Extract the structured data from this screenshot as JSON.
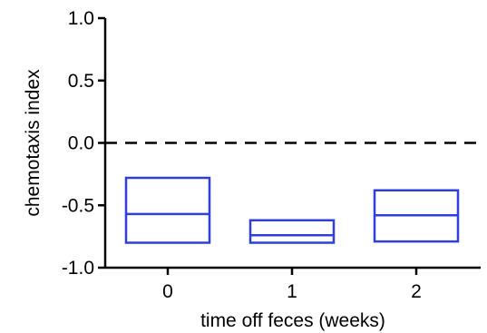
{
  "chart_data": {
    "type": "box",
    "xlabel": "time off feces (weeks)",
    "ylabel": "chemotaxis index",
    "ylim": [
      -1.0,
      1.0
    ],
    "yticks": [
      "1.0",
      "0.5",
      "0.0",
      "-0.5",
      "-1.0"
    ],
    "ytick_values": [
      1.0,
      0.5,
      0.0,
      -0.5,
      -1.0
    ],
    "categories": [
      "0",
      "1",
      "2"
    ],
    "boxes": [
      {
        "category": "0",
        "q1": -0.8,
        "median": -0.57,
        "q3": -0.28
      },
      {
        "category": "1",
        "q1": -0.8,
        "median": -0.74,
        "q3": -0.62
      },
      {
        "category": "2",
        "q1": -0.79,
        "median": -0.58,
        "q3": -0.38
      }
    ],
    "reference_line": 0.0,
    "box_color": "#2f3fdc",
    "axis_color": "#000000",
    "grid": false,
    "legend": "none"
  }
}
